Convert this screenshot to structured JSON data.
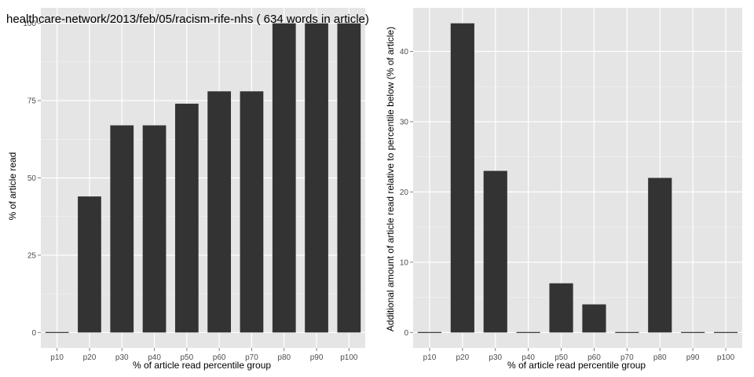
{
  "colors": {
    "panel_bg": "#e5e5e5",
    "grid_major": "#ffffff",
    "grid_minor": "#f2f2f2",
    "bar": "#333333",
    "tick": "#7f7f7f"
  },
  "chart_data": [
    {
      "type": "bar",
      "title": "healthcare-network/2013/feb/05/racism-rife-nhs ( 634 words in article)",
      "xlabel": "% of article read percentile group",
      "ylabel": "% of article read",
      "categories": [
        "p10",
        "p20",
        "p30",
        "p40",
        "p50",
        "p60",
        "p70",
        "p80",
        "p90",
        "p100"
      ],
      "values": [
        0,
        44,
        67,
        67,
        74,
        78,
        78,
        100,
        100,
        100
      ],
      "ylim": [
        0,
        100
      ],
      "yticks": [
        0,
        25,
        50,
        75,
        100
      ],
      "grid": true
    },
    {
      "type": "bar",
      "title": "",
      "xlabel": "% of article read percentile group",
      "ylabel": "Additional amount of article read relative to percentile below (% of article)",
      "categories": [
        "p10",
        "p20",
        "p30",
        "p40",
        "p50",
        "p60",
        "p70",
        "p80",
        "p90",
        "p100"
      ],
      "values": [
        0,
        44,
        23,
        0,
        7,
        4,
        0,
        22,
        0,
        0
      ],
      "ylim": [
        0,
        44
      ],
      "yticks": [
        0,
        10,
        20,
        30,
        40
      ],
      "grid": true
    }
  ]
}
